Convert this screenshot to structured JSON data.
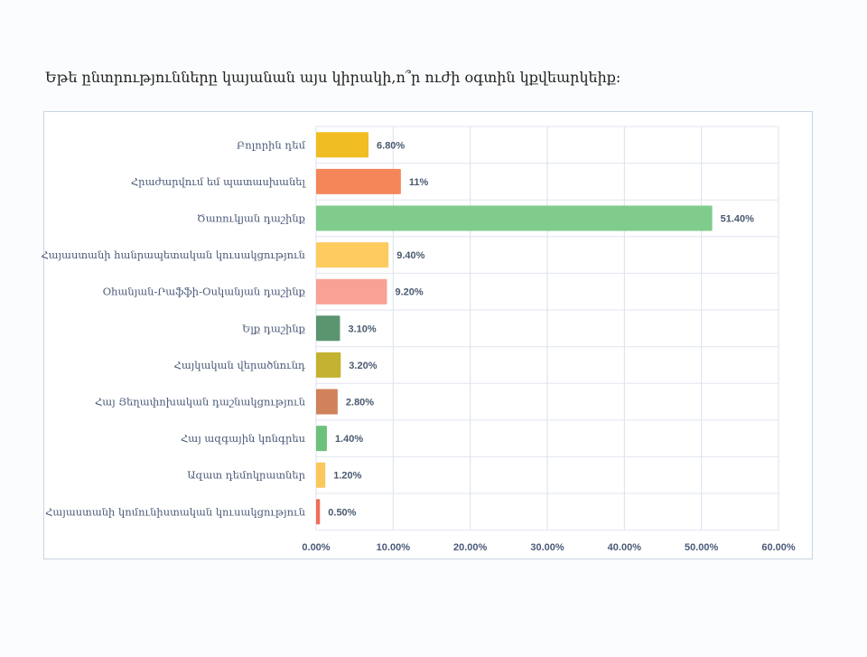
{
  "chart_data": {
    "type": "bar",
    "orientation": "horizontal",
    "title": "Եթե ընտրությունները կայանան այս կիրակի,ո՞ր ուժի օգտին կքվեարկեիք:",
    "xlabel": "",
    "ylabel": "",
    "xlim": [
      0,
      60
    ],
    "grid": true,
    "categories": [
      "Բոլորին դեմ",
      "Հրաժարվում եմ պատասխանել",
      "Ծառուկյան դաշինք",
      "Հայաստանի հանրապետական կուսակցություն",
      "Օհանյան-Րաֆֆի-Օսկանյան դաշինք",
      "Ելք դաշինք",
      "Հայկական վերածնունդ",
      "Հայ  Յեղափոխական դաշնակցություն",
      "Հայ ազգային կոնգրես",
      "Ազատ դեմոկրատներ",
      "Հայաստանի կոմունիստական կուսակցություն"
    ],
    "values": [
      6.8,
      11,
      51.4,
      9.4,
      9.2,
      3.1,
      3.2,
      2.8,
      1.4,
      1.2,
      0.5
    ],
    "data_labels": [
      "6.80%",
      "11%",
      "51.40%",
      "9.40%",
      "9.20%",
      "3.10%",
      "3.20%",
      "2.80%",
      "1.40%",
      "1.20%",
      "0.50%"
    ],
    "colors": [
      "#f0bd22",
      "#f5865a",
      "#7fcc8c",
      "#fdcb5e",
      "#f9a195",
      "#5b9570",
      "#c3b22f",
      "#d0825a",
      "#6dc17c",
      "#fbc65c",
      "#f06e58"
    ],
    "x_ticks": [
      0,
      10,
      20,
      30,
      40,
      50,
      60
    ],
    "x_tick_labels": [
      "0.00%",
      "10.00%",
      "20.00%",
      "30.00%",
      "40.00%",
      "50.00%",
      "60.00%"
    ]
  }
}
